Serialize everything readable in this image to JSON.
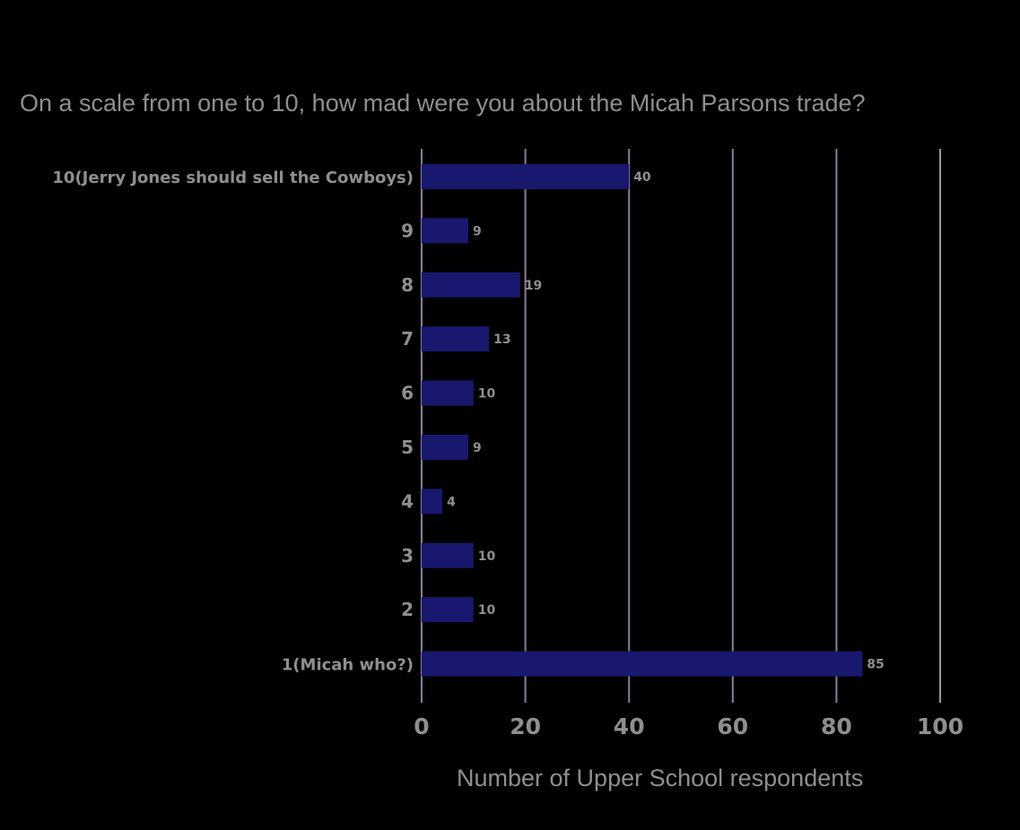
{
  "chart_data": {
    "type": "bar",
    "orientation": "horizontal",
    "title": "On a scale from one to 10, how mad were you about the Micah Parsons trade?",
    "xlabel": "Number of Upper School respondents",
    "ylabel": "",
    "categories": [
      "10(Jerry Jones should sell the Cowboys)",
      "9",
      "8",
      "7",
      "6",
      "5",
      "4",
      "3",
      "2",
      "1(Micah who?)"
    ],
    "values": [
      40,
      9,
      19,
      13,
      10,
      9,
      4,
      10,
      10,
      85
    ],
    "xlim": [
      0,
      100
    ],
    "xticks": [
      "0",
      "20",
      "40",
      "60",
      "80",
      "100"
    ],
    "grid": true,
    "legend": "none",
    "data_labels": true,
    "colors": {
      "background": "#000000",
      "bar": "#18186e",
      "text": "#8f8f8f",
      "grid": "#8f7a9c"
    }
  }
}
